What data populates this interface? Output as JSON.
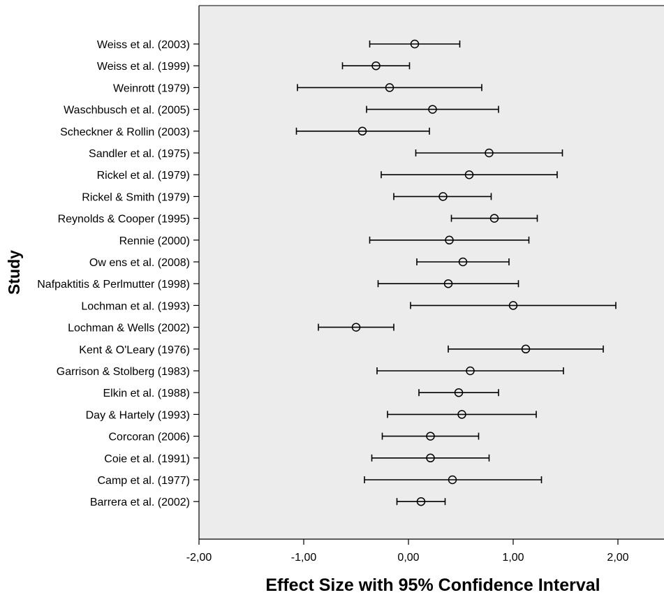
{
  "chart_data": {
    "type": "forest",
    "xlabel": "Effect Size with 95% Confidence Interval",
    "ylabel": "Study",
    "xlim": [
      -2,
      2.44
    ],
    "xticks": [
      -2,
      -1,
      0,
      1,
      2
    ],
    "xtick_labels": [
      "-2,00",
      "-1,00",
      "0,00",
      "1,00",
      "2,00"
    ],
    "background": "#ececec",
    "studies": [
      {
        "label": "Weiss et al. (2003)",
        "effect": 0.06,
        "lower": -0.37,
        "upper": 0.49
      },
      {
        "label": "Weiss et al. (1999)",
        "effect": -0.31,
        "lower": -0.63,
        "upper": 0.01
      },
      {
        "label": "Weinrott (1979)",
        "effect": -0.18,
        "lower": -1.06,
        "upper": 0.7
      },
      {
        "label": "Waschbusch et al. (2005)",
        "effect": 0.23,
        "lower": -0.4,
        "upper": 0.86
      },
      {
        "label": "Scheckner & Rollin (2003)",
        "effect": -0.44,
        "lower": -1.07,
        "upper": 0.2
      },
      {
        "label": "Sandler et al. (1975)",
        "effect": 0.77,
        "lower": 0.07,
        "upper": 1.47
      },
      {
        "label": "Rickel et al. (1979)",
        "effect": 0.58,
        "lower": -0.26,
        "upper": 1.42
      },
      {
        "label": "Rickel & Smith (1979)",
        "effect": 0.33,
        "lower": -0.14,
        "upper": 0.79
      },
      {
        "label": "Reynolds & Cooper (1995)",
        "effect": 0.82,
        "lower": 0.41,
        "upper": 1.23
      },
      {
        "label": "Rennie (2000)",
        "effect": 0.39,
        "lower": -0.37,
        "upper": 1.15
      },
      {
        "label": "Ow ens et al. (2008)",
        "effect": 0.52,
        "lower": 0.08,
        "upper": 0.96
      },
      {
        "label": "Nafpaktitis & Perlmutter (1998)",
        "effect": 0.38,
        "lower": -0.29,
        "upper": 1.05
      },
      {
        "label": "Lochman et al. (1993)",
        "effect": 1.0,
        "lower": 0.02,
        "upper": 1.98
      },
      {
        "label": "Lochman & Wells (2002)",
        "effect": -0.5,
        "lower": -0.86,
        "upper": -0.14
      },
      {
        "label": "Kent & O'Leary (1976)",
        "effect": 1.12,
        "lower": 0.38,
        "upper": 1.86
      },
      {
        "label": "Garrison & Stolberg (1983)",
        "effect": 0.59,
        "lower": -0.3,
        "upper": 1.48
      },
      {
        "label": "Elkin et al. (1988)",
        "effect": 0.48,
        "lower": 0.1,
        "upper": 0.86
      },
      {
        "label": "Day & Hartely (1993)",
        "effect": 0.51,
        "lower": -0.2,
        "upper": 1.22
      },
      {
        "label": "Corcoran (2006)",
        "effect": 0.21,
        "lower": -0.25,
        "upper": 0.67
      },
      {
        "label": "Coie et al. (1991)",
        "effect": 0.21,
        "lower": -0.35,
        "upper": 0.77
      },
      {
        "label": "Camp et al. (1977)",
        "effect": 0.42,
        "lower": -0.42,
        "upper": 1.27
      },
      {
        "label": "Barrera et al. (2002)",
        "effect": 0.12,
        "lower": -0.11,
        "upper": 0.35
      }
    ]
  }
}
